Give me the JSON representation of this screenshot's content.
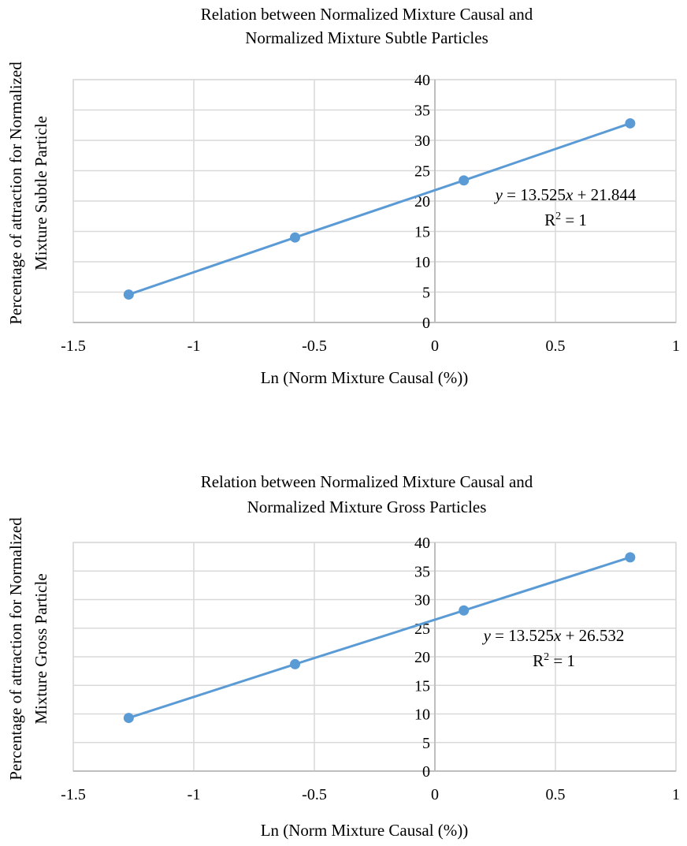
{
  "chart_data": [
    {
      "type": "scatter",
      "title": [
        "Relation between Normalized Mixture Causal and",
        "Normalized Mixture Subtle Particles"
      ],
      "xlabel": "Ln (Norm Mixture Causal (%))",
      "ylabel": [
        "Percentage of attraction for Normalized",
        "Mixture Subtle Particle"
      ],
      "xlim": [
        -1.5,
        1
      ],
      "ylim": [
        0,
        40
      ],
      "xticks": [
        -1.5,
        -1,
        -0.5,
        0,
        0.5,
        1
      ],
      "xtick_labels": [
        "-1.5",
        "-1",
        "-0.5",
        "0",
        "0.5",
        "1"
      ],
      "yticks": [
        0,
        5,
        10,
        15,
        20,
        25,
        30,
        35,
        40
      ],
      "ytick_labels": [
        "0",
        "5",
        "10",
        "15",
        "20",
        "25",
        "30",
        "35",
        "40"
      ],
      "grid": true,
      "color": "#5b9bd5",
      "series": [
        {
          "x": [
            -1.27,
            -0.58,
            0.12,
            0.81
          ],
          "y": [
            4.6,
            14.0,
            23.4,
            32.8
          ]
        }
      ],
      "trendline": {
        "slope": 13.525,
        "intercept": 21.844
      },
      "annotation": {
        "equation": [
          "y",
          " = 13.525",
          "x",
          " + 21.844"
        ],
        "r2_prefix": "R",
        "r2_sup": "2",
        "r2_suffix": " = 1"
      }
    },
    {
      "type": "scatter",
      "title": [
        "Relation between Normalized Mixture Causal and",
        "Normalized Mixture Gross Particles"
      ],
      "xlabel": "Ln (Norm Mixture Causal (%))",
      "ylabel": [
        "Percentage of attraction for Normalized",
        "Mixture Gross Particle"
      ],
      "xlim": [
        -1.5,
        1
      ],
      "ylim": [
        0,
        40
      ],
      "xticks": [
        -1.5,
        -1,
        -0.5,
        0,
        0.5,
        1
      ],
      "xtick_labels": [
        "-1.5",
        "-1",
        "-0.5",
        "0",
        "0.5",
        "1"
      ],
      "yticks": [
        0,
        5,
        10,
        15,
        20,
        25,
        30,
        35,
        40
      ],
      "ytick_labels": [
        "0",
        "5",
        "10",
        "15",
        "20",
        "25",
        "30",
        "35",
        "40"
      ],
      "grid": true,
      "color": "#5b9bd5",
      "series": [
        {
          "x": [
            -1.27,
            -0.58,
            0.12,
            0.81
          ],
          "y": [
            9.3,
            18.7,
            28.1,
            37.4
          ]
        }
      ],
      "trendline": {
        "slope": 13.525,
        "intercept": 26.532
      },
      "annotation": {
        "equation": [
          "y",
          " = 13.525",
          "x",
          " + 26.532"
        ],
        "r2_prefix": "R",
        "r2_sup": "2",
        "r2_suffix": " = 1"
      }
    }
  ]
}
